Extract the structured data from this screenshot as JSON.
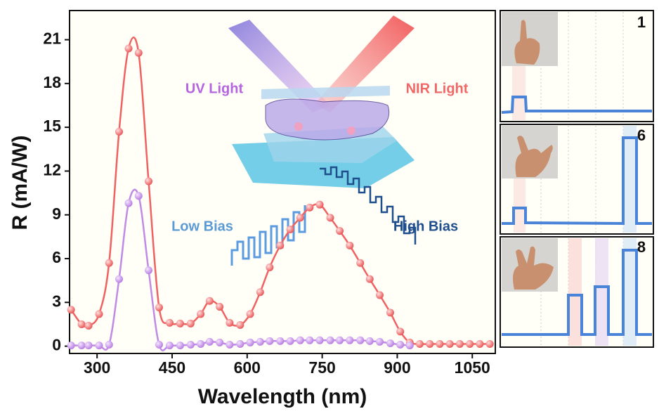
{
  "chart_data": {
    "type": "line",
    "x_label": "Wavelength (nm)",
    "y_label": "R (mA/W)",
    "xlim": [
      245,
      1096
    ],
    "ylim": [
      -0.5,
      23
    ],
    "xticks": [
      300,
      450,
      600,
      750,
      900,
      1050
    ],
    "yticks": [
      0,
      3,
      6,
      9,
      12,
      15,
      18,
      21
    ],
    "series": [
      {
        "name": null,
        "color": "#f06262",
        "x": [
          248,
          269,
          283,
          304,
          324,
          344,
          363,
          383,
          403,
          424,
          445,
          466,
          487,
          507,
          525,
          545,
          565,
          586,
          606,
          626,
          645,
          666,
          686,
          706,
          725,
          745,
          766,
          785,
          805,
          826,
          845,
          865,
          886,
          906,
          925,
          945,
          965,
          985,
          1005,
          1025,
          1045,
          1065,
          1085
        ],
        "values": [
          2.5,
          1.5,
          1.4,
          2.2,
          5.7,
          14.7,
          20.4,
          20.1,
          11.3,
          2.65,
          1.6,
          1.55,
          1.55,
          2.2,
          3.1,
          2.7,
          1.6,
          1.45,
          2.2,
          3.7,
          5.4,
          6.9,
          8.0,
          8.8,
          9.5,
          9.7,
          8.8,
          7.9,
          6.9,
          5.7,
          4.6,
          3.5,
          2.3,
          1.0,
          0.25,
          0.15,
          0.15,
          0.15,
          0.15,
          0.15,
          0.15,
          0.15,
          0.15
        ]
      },
      {
        "name": null,
        "color": "#c08ae6",
        "x": [
          248,
          269,
          283,
          304,
          324,
          344,
          363,
          383,
          403,
          424,
          445,
          466,
          487,
          507,
          525,
          545,
          565,
          586,
          606,
          626,
          645,
          666,
          686,
          706,
          725,
          745,
          766,
          785,
          805,
          826,
          845,
          865,
          886,
          906,
          925
        ],
        "values": [
          0.05,
          0.05,
          0.05,
          0.05,
          0.1,
          4.6,
          9.8,
          10.3,
          5.2,
          0.1,
          0.05,
          0.05,
          0.1,
          0.15,
          0.3,
          0.25,
          0.1,
          0.15,
          0.25,
          0.3,
          0.35,
          0.35,
          0.35,
          0.4,
          0.4,
          0.4,
          0.4,
          0.4,
          0.4,
          0.4,
          0.35,
          0.3,
          0.2,
          0.1,
          0.05
        ]
      }
    ],
    "annotations": [
      "UV Light",
      "NIR Light",
      "Low Bias",
      "High Bias"
    ],
    "panel_labels": [
      "1",
      "6",
      "8"
    ]
  }
}
